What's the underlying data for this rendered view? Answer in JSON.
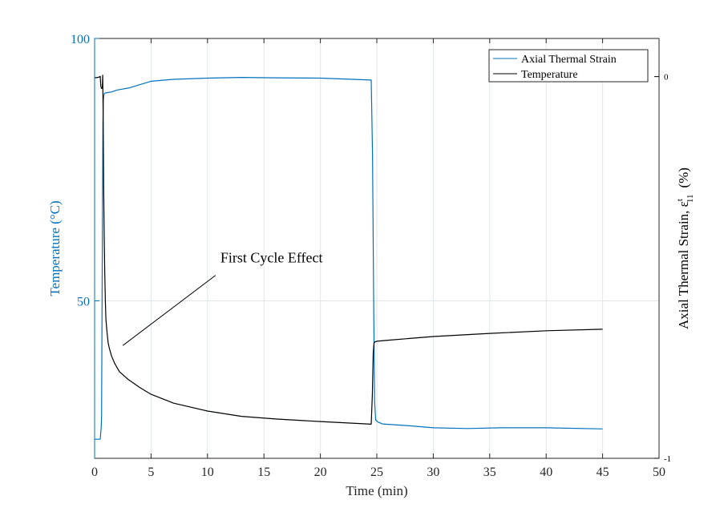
{
  "chart_data": {
    "type": "line",
    "xlabel": "Time (min)",
    "ylabel_left": "Temperature (°C)",
    "ylabel_right": "Axial Thermal Strain, ε",
    "ylabel_right_sup": "t",
    "ylabel_right_sub": "11",
    "ylabel_right_unit": "(%)",
    "xlim": [
      0,
      50
    ],
    "ylim_left": [
      20,
      100
    ],
    "ylim_right": [
      -1,
      0.1
    ],
    "x_ticks": [
      0,
      5,
      10,
      15,
      20,
      25,
      30,
      35,
      40,
      45,
      50
    ],
    "y_ticks_left": [
      50,
      100
    ],
    "y_ticks_right": [
      0,
      -1
    ],
    "right_tick_labels": [
      "0",
      "-1"
    ],
    "grid": true,
    "legend_position": "top-right",
    "colors": {
      "strain": "#0072BD",
      "temperature": "#000000",
      "left_axis": "#0072BD",
      "right_axis": "#000000",
      "grid": "#dfe5ea"
    },
    "series": [
      {
        "name": "Axial Thermal Strain",
        "axis": "right",
        "x": [
          0,
          0.5,
          0.58,
          0.62,
          0.66,
          0.7,
          0.74,
          0.78,
          0.82,
          0.86,
          0.92,
          1.1,
          1.5,
          2,
          3,
          5,
          7,
          10,
          13,
          16,
          20,
          24.5,
          24.62,
          24.72,
          24.8,
          24.9,
          25.1,
          25.5,
          26,
          28,
          30,
          33,
          36,
          40,
          45
        ],
        "y": [
          -0.95,
          -0.95,
          -0.92,
          -0.89,
          -0.6,
          -0.3,
          -0.12,
          -0.06,
          -0.05,
          -0.045,
          -0.043,
          -0.042,
          -0.04,
          -0.035,
          -0.03,
          -0.012,
          -0.007,
          -0.004,
          -0.002,
          -0.003,
          -0.004,
          -0.009,
          -0.2,
          -0.6,
          -0.85,
          -0.9,
          -0.905,
          -0.91,
          -0.911,
          -0.915,
          -0.92,
          -0.922,
          -0.92,
          -0.92,
          -0.923
        ]
      },
      {
        "name": "Temperature",
        "axis": "left",
        "x": [
          0,
          0.35,
          0.5,
          0.55,
          0.6,
          0.68,
          0.72,
          0.76,
          0.8,
          0.85,
          0.9,
          0.95,
          1.0,
          1.1,
          1.2,
          1.3,
          1.5,
          1.8,
          2.2,
          3,
          4,
          5,
          7,
          10,
          13,
          16,
          20,
          24.5,
          24.6,
          24.68,
          24.75,
          24.85,
          25,
          26,
          30,
          35,
          40,
          45
        ],
        "y": [
          92.5,
          92.6,
          92.8,
          91,
          90.5,
          90.5,
          93,
          85,
          72,
          62,
          55,
          50,
          46.5,
          44,
          42,
          41,
          39.5,
          38,
          36.5,
          35,
          33.5,
          32.2,
          30.5,
          29,
          28,
          27.5,
          27,
          26.5,
          32,
          40,
          42,
          42.2,
          42.3,
          42.5,
          43.2,
          43.8,
          44.3,
          44.6
        ]
      }
    ],
    "annotations": [
      {
        "text": "First Cycle Effect",
        "x": 11,
        "y": 57,
        "arrow_to": [
          2.5,
          41.5
        ]
      }
    ]
  }
}
